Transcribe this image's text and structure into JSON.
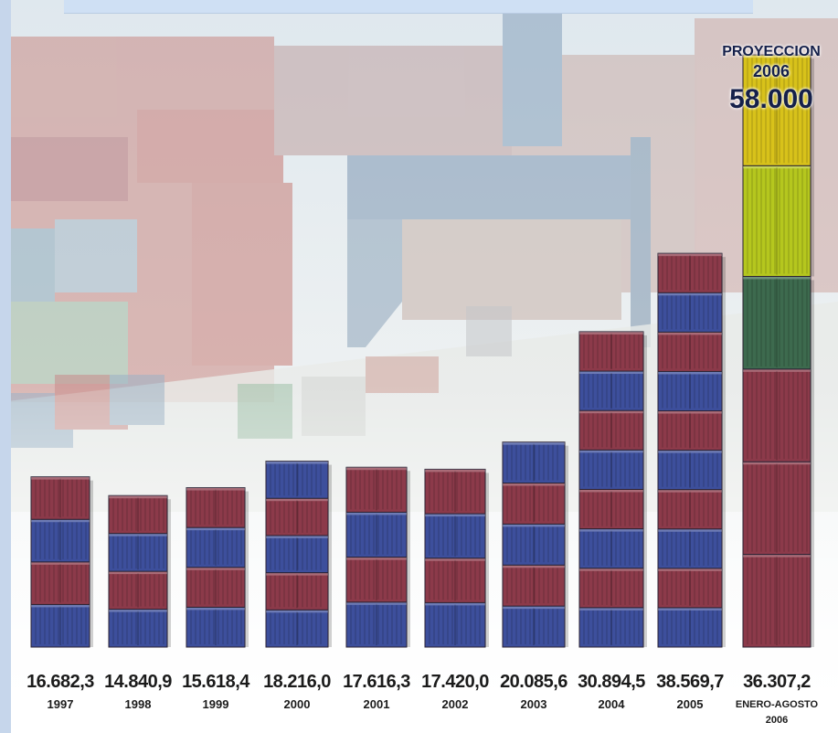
{
  "chart_data": {
    "type": "bar",
    "title": "",
    "xlabel": "",
    "ylabel": "",
    "categories": [
      "1997",
      "1998",
      "1999",
      "2000",
      "2001",
      "2002",
      "2003",
      "2004",
      "2005",
      "2006"
    ],
    "values": [
      16682.3,
      14840.9,
      15618.4,
      18216.0,
      17616.3,
      17420.0,
      20085.6,
      30894.5,
      38569.7,
      36307.2
    ],
    "value_labels": [
      "16.682,3",
      "14.840,9",
      "15.618,4",
      "18.216,0",
      "17.616,3",
      "17.420,0",
      "20.085,6",
      "30.894,5",
      "38.569,7",
      "36.307,2"
    ],
    "year_labels": [
      "1997",
      "1998",
      "1999",
      "2000",
      "2001",
      "2002",
      "2003",
      "2004",
      "2005",
      "ENERO-AGOSTO"
    ],
    "last_year_extra": "2006",
    "projection": {
      "heading": "PROYECCION",
      "year": "2006",
      "value_label": "58.000",
      "value": 58000
    },
    "ylim": [
      0,
      58000
    ],
    "grid": false,
    "legend": "none"
  },
  "colors": {
    "container_red": "#8c3a4a",
    "container_blue": "#3d4f9c",
    "container_yellow": "#d8c21a",
    "container_lime": "#b5c71e",
    "container_green": "#3d6a4e",
    "background_sky": "#d8e6f0",
    "frame_blue": "#c3d4ea",
    "label_text": "#1b1b1b"
  }
}
